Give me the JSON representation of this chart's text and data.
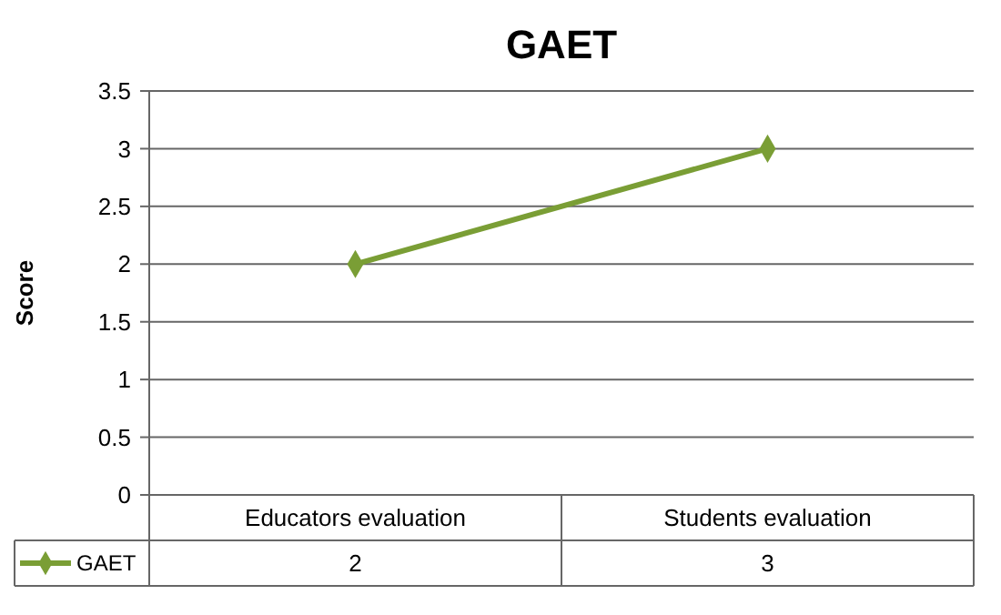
{
  "chart_data": {
    "type": "line",
    "title": "GAET",
    "ylabel": "Score",
    "categories": [
      "Educators evaluation",
      "Students evaluation"
    ],
    "series": [
      {
        "name": "GAET",
        "color": "#7a9e35",
        "values": [
          2,
          3
        ]
      }
    ],
    "ylim": [
      0,
      3.5
    ],
    "yticks": [
      0,
      0.5,
      1,
      1.5,
      2,
      2.5,
      3,
      3.5
    ],
    "grid": "y",
    "marker": "diamond",
    "line_style": "solid",
    "data_labels": true,
    "legend": "bottom"
  }
}
